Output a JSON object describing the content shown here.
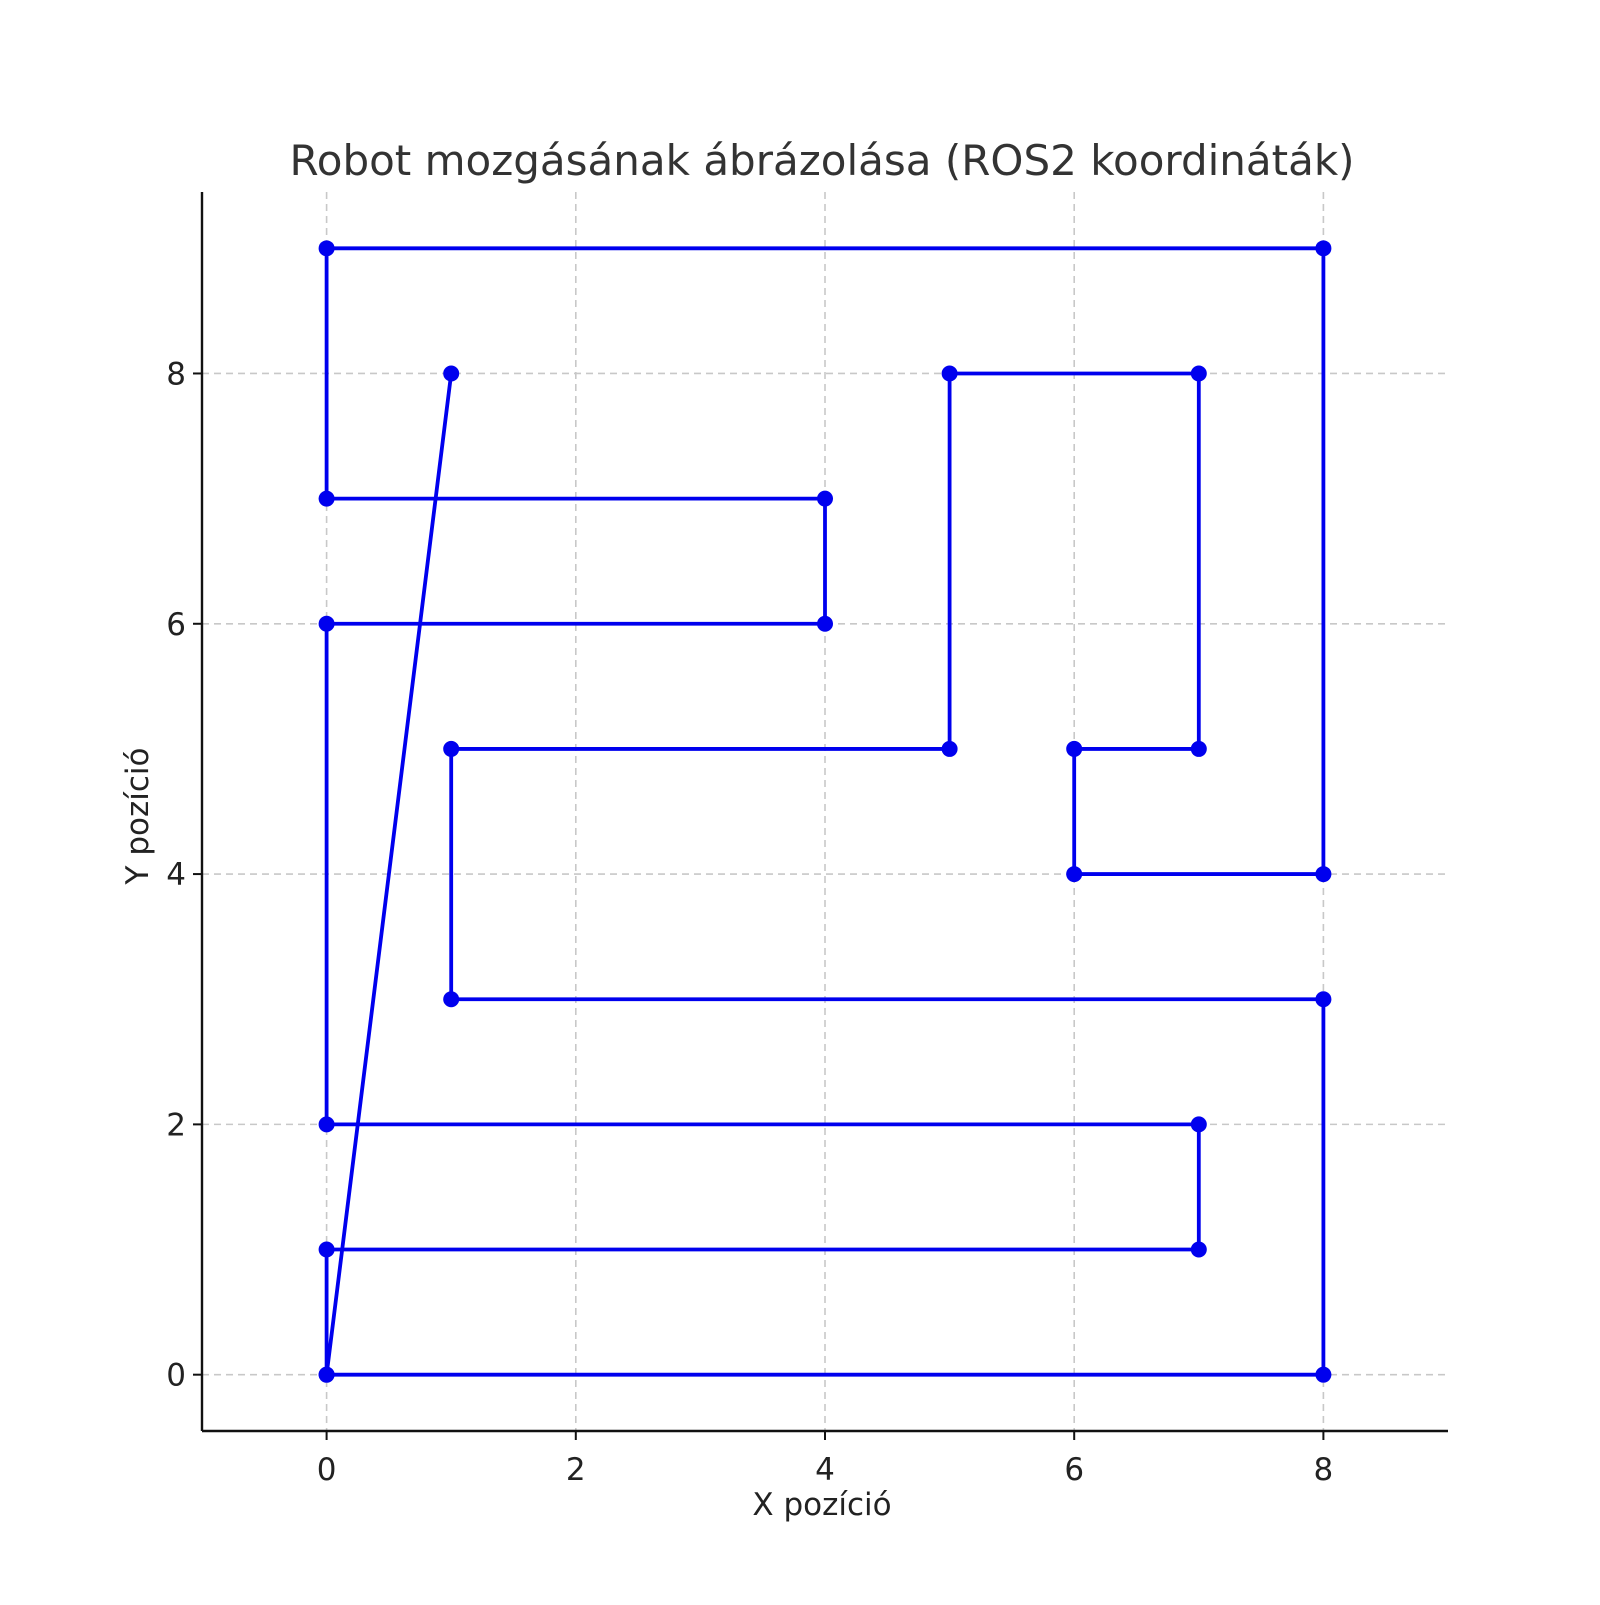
{
  "chart_data": {
    "type": "line",
    "title": "Robot mozgásának ábrázolása (ROS2 koordináták)",
    "xlabel": "X pozíció",
    "ylabel": "Y pozíció",
    "xlim": [
      -1,
      9
    ],
    "ylim": [
      -0.45,
      9.45
    ],
    "xticks": [
      0,
      2,
      4,
      6,
      8
    ],
    "yticks": [
      0,
      2,
      4,
      6,
      8
    ],
    "grid": true,
    "grid_style": "dashed",
    "markers": true,
    "series": [
      {
        "color": "#0000ee",
        "x": [
          0,
          8,
          8,
          1,
          1,
          5,
          5,
          7,
          7,
          6,
          6,
          8,
          8,
          0,
          0,
          4,
          4,
          0,
          0,
          7,
          7,
          0,
          0,
          1
        ],
        "y": [
          0,
          0,
          3,
          3,
          5,
          5,
          8,
          8,
          5,
          5,
          4,
          4,
          9,
          9,
          7,
          7,
          6,
          6,
          2,
          2,
          1,
          1,
          0,
          8
        ]
      }
    ]
  }
}
